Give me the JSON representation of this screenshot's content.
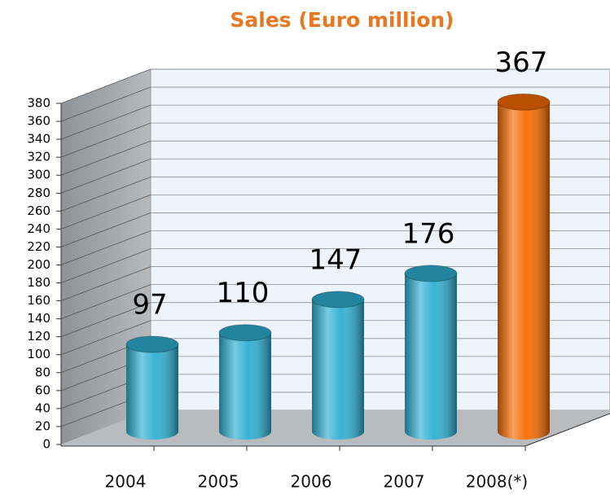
{
  "chart_data": {
    "type": "bar3d",
    "title": "Sales (Euro million)",
    "categories": [
      "2004",
      "2005",
      "2006",
      "2007",
      "2008(*)"
    ],
    "values": [
      97,
      110,
      147,
      176,
      367
    ],
    "colors": [
      "#2fb0d3",
      "#2fb0d3",
      "#2fb0d3",
      "#2fb0d3",
      "#f76b00"
    ],
    "ylim": [
      0,
      380
    ],
    "yticks": [
      0,
      20,
      40,
      60,
      80,
      100,
      120,
      140,
      160,
      180,
      200,
      220,
      240,
      260,
      280,
      300,
      320,
      340,
      360,
      380
    ],
    "grid": true
  }
}
